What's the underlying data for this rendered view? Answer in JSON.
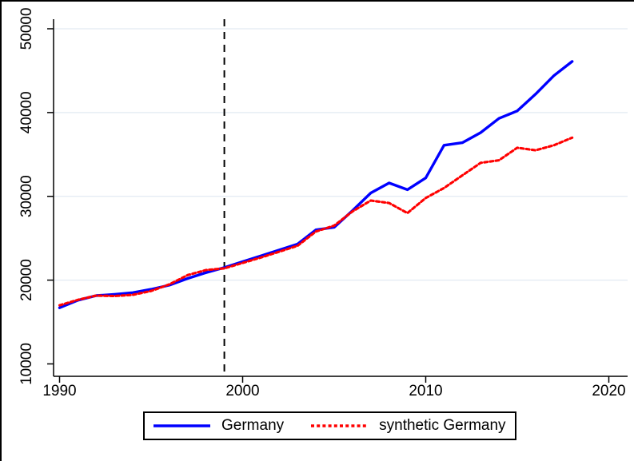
{
  "figure": {
    "kind": "stata-style synthetic control line chart",
    "background": "#ffffff",
    "axis_color": "#000000"
  },
  "chart_data": {
    "type": "line",
    "x": [
      1990,
      1991,
      1992,
      1993,
      1994,
      1995,
      1996,
      1997,
      1998,
      1999,
      2000,
      2001,
      2002,
      2003,
      2004,
      2005,
      2006,
      2007,
      2008,
      2009,
      2010,
      2011,
      2012,
      2013,
      2014,
      2015,
      2016,
      2017,
      2018
    ],
    "series": [
      {
        "name": "Germany",
        "color": "#0000ff",
        "style": "solid",
        "values": [
          16700,
          17600,
          18150,
          18300,
          18500,
          18900,
          19400,
          20200,
          20900,
          21500,
          22200,
          22900,
          23600,
          24300,
          26000,
          26300,
          28300,
          30400,
          31600,
          30800,
          32200,
          36100,
          36400,
          37600,
          39300,
          40200,
          42200,
          44400,
          46100
        ]
      },
      {
        "name": "synthetic Germany",
        "color": "#ff0000",
        "style": "dashed",
        "values": [
          17000,
          17650,
          18150,
          18100,
          18250,
          18700,
          19500,
          20600,
          21200,
          21400,
          22050,
          22700,
          23400,
          24100,
          25800,
          26500,
          28200,
          29500,
          29200,
          28000,
          29800,
          31000,
          32500,
          34000,
          34300,
          35800,
          35500,
          36100,
          37000
        ]
      }
    ],
    "treatment_line_x": 1999,
    "x_ticks": [
      1990,
      2000,
      2010,
      2020
    ],
    "y_ticks": [
      10000,
      20000,
      30000,
      40000,
      50000
    ],
    "xlim": [
      1989.7,
      2021.0
    ],
    "ylim": [
      10000,
      51150
    ],
    "grid": true,
    "grid_color": "#e2eaf2",
    "treatment_line_color": "#000000",
    "legend_position": "bottom-center"
  },
  "legend": {
    "items": [
      {
        "label": "Germany"
      },
      {
        "label": "synthetic Germany"
      }
    ]
  }
}
